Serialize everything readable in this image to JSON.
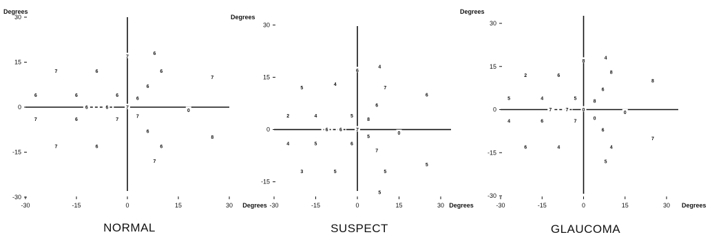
{
  "chart_data": [
    {
      "type": "scatter",
      "title": "NORMAL",
      "xlabel": "Degrees",
      "ylabel": "Degrees",
      "xlim": [
        -30,
        30
      ],
      "ylim": [
        -30,
        30
      ],
      "xticks": [
        -30,
        -15,
        0,
        15,
        30
      ],
      "yticks": [
        30,
        15,
        0,
        -15,
        -30
      ],
      "grid": false,
      "points": [
        {
          "x": -27,
          "y": 4,
          "label": "6"
        },
        {
          "x": -27,
          "y": -4,
          "label": "7"
        },
        {
          "x": -21,
          "y": 12,
          "label": "7"
        },
        {
          "x": -21,
          "y": -13,
          "label": "7"
        },
        {
          "x": -15,
          "y": 4,
          "label": "6"
        },
        {
          "x": -15,
          "y": -4,
          "label": "6"
        },
        {
          "x": -12,
          "y": 0,
          "label": "6"
        },
        {
          "x": -9,
          "y": 12,
          "label": "6"
        },
        {
          "x": -9,
          "y": -13,
          "label": "6"
        },
        {
          "x": -6,
          "y": 0,
          "label": "6"
        },
        {
          "x": -3,
          "y": 4,
          "label": "6"
        },
        {
          "x": -3,
          "y": -4,
          "label": "7"
        },
        {
          "x": 0,
          "y": 17,
          "label": "7"
        },
        {
          "x": 0,
          "y": 0,
          "label": "7"
        },
        {
          "x": 3,
          "y": 3,
          "label": "6"
        },
        {
          "x": 3,
          "y": -3,
          "label": "7"
        },
        {
          "x": 6,
          "y": 7,
          "label": "6"
        },
        {
          "x": 6,
          "y": -8,
          "label": "6"
        },
        {
          "x": 8,
          "y": 18,
          "label": "6"
        },
        {
          "x": 8,
          "y": -18,
          "label": "7"
        },
        {
          "x": 10,
          "y": 12,
          "label": "6"
        },
        {
          "x": 10,
          "y": -13,
          "label": "6"
        },
        {
          "x": 18,
          "y": -1,
          "label": "0"
        },
        {
          "x": 25,
          "y": 10,
          "label": "7"
        },
        {
          "x": 25,
          "y": -10,
          "label": "8"
        }
      ]
    },
    {
      "type": "scatter",
      "title": "SUSPECT",
      "xlabel": "Degrees",
      "ylabel": "Degrees",
      "xlim": [
        -30,
        30
      ],
      "ylim": [
        -20,
        35
      ],
      "xticks": [
        -30,
        -15,
        0,
        15,
        30
      ],
      "yticks": [
        30,
        15,
        0,
        -15
      ],
      "grid": false,
      "points": [
        {
          "x": -25,
          "y": 4,
          "label": "2"
        },
        {
          "x": -25,
          "y": -4,
          "label": "4"
        },
        {
          "x": -20,
          "y": 12,
          "label": "5"
        },
        {
          "x": -20,
          "y": -12,
          "label": "3"
        },
        {
          "x": -15,
          "y": 4,
          "label": "4"
        },
        {
          "x": -15,
          "y": -4,
          "label": "5"
        },
        {
          "x": -11,
          "y": 0,
          "label": "6"
        },
        {
          "x": -8,
          "y": 13,
          "label": "4"
        },
        {
          "x": -8,
          "y": -12,
          "label": "5"
        },
        {
          "x": -6,
          "y": 0,
          "label": "6"
        },
        {
          "x": -2,
          "y": 4,
          "label": "5"
        },
        {
          "x": -2,
          "y": -4,
          "label": "6"
        },
        {
          "x": 0,
          "y": 17,
          "label": "6"
        },
        {
          "x": 0,
          "y": 0,
          "label": "7"
        },
        {
          "x": 4,
          "y": 3,
          "label": "8"
        },
        {
          "x": 4,
          "y": -2,
          "label": "5"
        },
        {
          "x": 7,
          "y": 7,
          "label": "6"
        },
        {
          "x": 7,
          "y": -6,
          "label": "7"
        },
        {
          "x": 8,
          "y": 18,
          "label": "4"
        },
        {
          "x": 8,
          "y": -18,
          "label": "5"
        },
        {
          "x": 10,
          "y": 12,
          "label": "7"
        },
        {
          "x": 10,
          "y": -12,
          "label": "5"
        },
        {
          "x": 15,
          "y": -1,
          "label": "0"
        },
        {
          "x": 25,
          "y": 10,
          "label": "6"
        },
        {
          "x": 25,
          "y": -10,
          "label": "5"
        }
      ]
    },
    {
      "type": "scatter",
      "title": "GLAUCOMA",
      "xlabel": "Degrees",
      "ylabel": "Degrees",
      "xlim": [
        -30,
        30
      ],
      "ylim": [
        -30,
        30
      ],
      "xticks": [
        -30,
        -15,
        0,
        15,
        30
      ],
      "yticks": [
        30,
        15,
        0,
        -15,
        -30
      ],
      "grid": false,
      "points": [
        {
          "x": -27,
          "y": 4,
          "label": "5"
        },
        {
          "x": -27,
          "y": -4,
          "label": "4"
        },
        {
          "x": -21,
          "y": 12,
          "label": "2"
        },
        {
          "x": -21,
          "y": -13,
          "label": "6"
        },
        {
          "x": -15,
          "y": 4,
          "label": "4"
        },
        {
          "x": -15,
          "y": -4,
          "label": "6"
        },
        {
          "x": -12,
          "y": 0,
          "label": "7"
        },
        {
          "x": -9,
          "y": 12,
          "label": "6"
        },
        {
          "x": -9,
          "y": -13,
          "label": "4"
        },
        {
          "x": -6,
          "y": 0,
          "label": "7"
        },
        {
          "x": -3,
          "y": 4,
          "label": "5"
        },
        {
          "x": -3,
          "y": -4,
          "label": "7"
        },
        {
          "x": 0,
          "y": 17,
          "label": "8"
        },
        {
          "x": 0,
          "y": 0,
          "label": "0"
        },
        {
          "x": 4,
          "y": 3,
          "label": "8"
        },
        {
          "x": 4,
          "y": -3,
          "label": "0"
        },
        {
          "x": 7,
          "y": 7,
          "label": "6"
        },
        {
          "x": 7,
          "y": -7,
          "label": "6"
        },
        {
          "x": 8,
          "y": 18,
          "label": "4"
        },
        {
          "x": 8,
          "y": -18,
          "label": "5"
        },
        {
          "x": 10,
          "y": 13,
          "label": "8"
        },
        {
          "x": 10,
          "y": -13,
          "label": "4"
        },
        {
          "x": 15,
          "y": -1,
          "label": "0"
        },
        {
          "x": 25,
          "y": 10,
          "label": "8"
        },
        {
          "x": 25,
          "y": -10,
          "label": "7"
        }
      ]
    }
  ]
}
